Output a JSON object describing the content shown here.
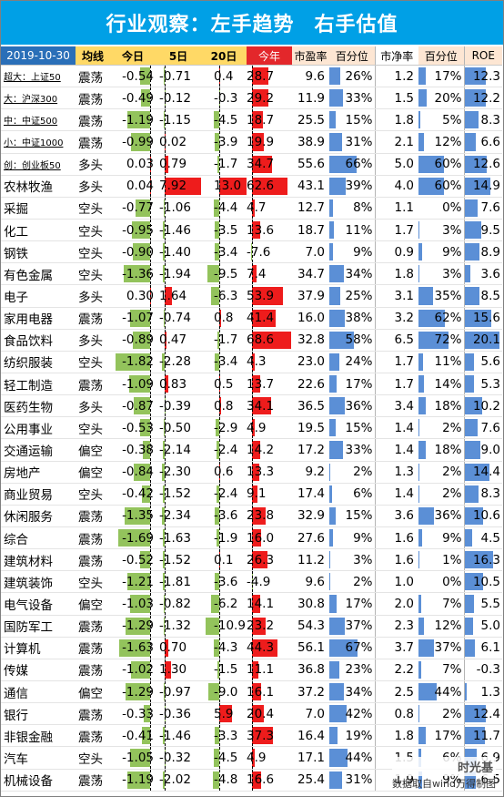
{
  "title": {
    "left": "行业观察：左手趋势",
    "right": "右手估值"
  },
  "header": {
    "date": "2019-10-30",
    "trend": "均线",
    "today": "今日",
    "d5": "5日",
    "d20": "20日",
    "ytd": "今年",
    "pe": "市盈率",
    "pe_pct": "百分位",
    "pb": "市净率",
    "pb_pct": "百分位",
    "roe": "ROE"
  },
  "watermark": {
    "logo": "时光基",
    "source": "数据取自wind万得制图"
  },
  "colors": {
    "title_bg": "#00a0e6",
    "negative": "#93c35c",
    "positive": "#ee1c1c",
    "percentile": "#5b8fd6",
    "header_peach": "#fde6d3",
    "header_yellow": "#ffd966",
    "header_blue": "#2a6fb8",
    "header_red": "#e3272b"
  },
  "chart_data": {
    "type": "table",
    "columns": [
      "名称",
      "均线",
      "今日",
      "5日",
      "20日",
      "今年",
      "市盈率",
      "百分位",
      "市净率",
      "百分位",
      "ROE"
    ],
    "rows": [
      {
        "name": "超大：上证50",
        "small": true,
        "trend": "震荡",
        "today": -0.54,
        "d5": -0.71,
        "d20": 0.4,
        "ytd": 28.7,
        "pe": 9.6,
        "pe_pct": 26,
        "pb": 1.2,
        "pb_pct": 17,
        "roe": 12.3
      },
      {
        "name": "大：沪深300",
        "small": true,
        "trend": "震荡",
        "today": -0.49,
        "d5": -0.12,
        "d20": -0.3,
        "ytd": 29.2,
        "pe": 11.9,
        "pe_pct": 33,
        "pb": 1.5,
        "pb_pct": 20,
        "roe": 12.2
      },
      {
        "name": "中：中证500",
        "small": true,
        "trend": "震荡",
        "today": -1.19,
        "d5": -1.15,
        "d20": -4.5,
        "ytd": 18.7,
        "pe": 25.5,
        "pe_pct": 15,
        "pb": 1.8,
        "pb_pct": 5,
        "roe": 8.3
      },
      {
        "name": "小：中证1000",
        "small": true,
        "trend": "震荡",
        "today": -0.99,
        "d5": 0.02,
        "d20": -3.9,
        "ytd": 19.9,
        "pe": 38.9,
        "pe_pct": 31,
        "pb": 2.1,
        "pb_pct": 12,
        "roe": 6.6
      },
      {
        "name": "创：创业板50",
        "small": true,
        "trend": "多头",
        "today": 0.03,
        "d5": 0.79,
        "d20": -1.7,
        "ytd": 34.7,
        "pe": 55.6,
        "pe_pct": 66,
        "pb": 5.0,
        "pb_pct": 60,
        "roe": 12.6
      },
      {
        "name": "农林牧渔",
        "trend": "多头",
        "today": 0.04,
        "d5": 7.92,
        "d20": 13.0,
        "ytd": 62.6,
        "pe": 43.1,
        "pe_pct": 39,
        "pb": 4.0,
        "pb_pct": 60,
        "roe": 14.9
      },
      {
        "name": "采掘",
        "trend": "空头",
        "today": -0.77,
        "d5": -1.06,
        "d20": -4.4,
        "ytd": 4.7,
        "pe": 12.7,
        "pe_pct": 8,
        "pb": 1.1,
        "pb_pct": 0,
        "roe": 7.6
      },
      {
        "name": "化工",
        "trend": "空头",
        "today": -0.95,
        "d5": -1.46,
        "d20": -3.5,
        "ytd": 13.6,
        "pe": 18.7,
        "pe_pct": 11,
        "pb": 1.7,
        "pb_pct": 3,
        "roe": 9.5
      },
      {
        "name": "钢铁",
        "trend": "空头",
        "today": -0.9,
        "d5": -1.4,
        "d20": -3.4,
        "ytd": -7.6,
        "pe": 7.0,
        "pe_pct": 9,
        "pb": 0.9,
        "pb_pct": 9,
        "roe": 8.9
      },
      {
        "name": "有色金属",
        "trend": "空头",
        "today": -1.36,
        "d5": -1.94,
        "d20": -9.5,
        "ytd": 7.4,
        "pe": 34.7,
        "pe_pct": 34,
        "pb": 1.8,
        "pb_pct": 3,
        "roe": 3.6
      },
      {
        "name": "电子",
        "trend": "多头",
        "today": 0.3,
        "d5": 1.64,
        "d20": -6.3,
        "ytd": 53.9,
        "pe": 37.9,
        "pe_pct": 25,
        "pb": 3.1,
        "pb_pct": 35,
        "roe": 8.5
      },
      {
        "name": "家用电器",
        "trend": "震荡",
        "today": -1.07,
        "d5": -0.74,
        "d20": 0.8,
        "ytd": 41.4,
        "pe": 16.0,
        "pe_pct": 38,
        "pb": 3.2,
        "pb_pct": 62,
        "roe": 15.6
      },
      {
        "name": "食品饮料",
        "trend": "多头",
        "today": -0.89,
        "d5": 0.47,
        "d20": -1.7,
        "ytd": 68.6,
        "pe": 32.8,
        "pe_pct": 58,
        "pb": 6.5,
        "pb_pct": 72,
        "roe": 20.1
      },
      {
        "name": "纺织服装",
        "trend": "空头",
        "today": -1.82,
        "d5": -2.28,
        "d20": -3.4,
        "ytd": 4.3,
        "pe": 23.0,
        "pe_pct": 24,
        "pb": 1.7,
        "pb_pct": 11,
        "roe": 5.6
      },
      {
        "name": "轻工制造",
        "trend": "震荡",
        "today": -1.09,
        "d5": 0.83,
        "d20": 0.5,
        "ytd": 13.7,
        "pe": 22.6,
        "pe_pct": 17,
        "pb": 1.7,
        "pb_pct": 14,
        "roe": 5.3
      },
      {
        "name": "医药生物",
        "trend": "多头",
        "today": -0.87,
        "d5": -0.39,
        "d20": 0.8,
        "ytd": 34.1,
        "pe": 36.5,
        "pe_pct": 36,
        "pb": 3.4,
        "pb_pct": 18,
        "roe": 10.2
      },
      {
        "name": "公用事业",
        "trend": "空头",
        "today": -0.53,
        "d5": -0.5,
        "d20": -2.9,
        "ytd": 4.9,
        "pe": 19.5,
        "pe_pct": 15,
        "pb": 1.4,
        "pb_pct": 2,
        "roe": 7.6
      },
      {
        "name": "交通运输",
        "trend": "偏空",
        "today": -0.38,
        "d5": -2.14,
        "d20": -2.4,
        "ytd": 14.2,
        "pe": 17.2,
        "pe_pct": 33,
        "pb": 1.4,
        "pb_pct": 18,
        "roe": 9.0
      },
      {
        "name": "房地产",
        "trend": "偏空",
        "today": -0.84,
        "d5": -2.3,
        "d20": 0.6,
        "ytd": 13.3,
        "pe": 9.2,
        "pe_pct": 2,
        "pb": 1.3,
        "pb_pct": 2,
        "roe": 14.4
      },
      {
        "name": "商业贸易",
        "trend": "空头",
        "today": -0.42,
        "d5": -1.52,
        "d20": -2.4,
        "ytd": 9.1,
        "pe": 17.4,
        "pe_pct": 6,
        "pb": 1.4,
        "pb_pct": 2,
        "roe": 8.3
      },
      {
        "name": "休闲服务",
        "trend": "震荡",
        "today": -1.35,
        "d5": -2.34,
        "d20": -3.6,
        "ytd": 23.8,
        "pe": 32.9,
        "pe_pct": 15,
        "pb": 3.6,
        "pb_pct": 36,
        "roe": 10.6
      },
      {
        "name": "综合",
        "trend": "震荡",
        "today": -1.69,
        "d5": -1.63,
        "d20": -1.9,
        "ytd": 16.0,
        "pe": 27.6,
        "pe_pct": 9,
        "pb": 1.6,
        "pb_pct": 9,
        "roe": 4.5
      },
      {
        "name": "建筑材料",
        "trend": "震荡",
        "today": -0.52,
        "d5": -1.52,
        "d20": 0.1,
        "ytd": 26.3,
        "pe": 11.2,
        "pe_pct": 3,
        "pb": 1.6,
        "pb_pct": 1,
        "roe": 16.3
      },
      {
        "name": "建筑装饰",
        "trend": "空头",
        "today": -1.21,
        "d5": -1.81,
        "d20": -3.6,
        "ytd": -4.9,
        "pe": 9.6,
        "pe_pct": 2,
        "pb": 1.0,
        "pb_pct": 0,
        "roe": 10.5
      },
      {
        "name": "电气设备",
        "trend": "偏空",
        "today": -1.03,
        "d5": -0.82,
        "d20": -6.2,
        "ytd": 14.1,
        "pe": 30.8,
        "pe_pct": 17,
        "pb": 2.0,
        "pb_pct": 7,
        "roe": 5.5
      },
      {
        "name": "国防军工",
        "trend": "震荡",
        "today": -1.29,
        "d5": -1.32,
        "d20": -10.9,
        "ytd": 23.2,
        "pe": 54.3,
        "pe_pct": 37,
        "pb": 2.3,
        "pb_pct": 12,
        "roe": 5.0
      },
      {
        "name": "计算机",
        "trend": "震荡",
        "today": -1.63,
        "d5": 0.7,
        "d20": -4.3,
        "ytd": 44.3,
        "pe": 56.1,
        "pe_pct": 67,
        "pb": 3.7,
        "pb_pct": 37,
        "roe": 6.1
      },
      {
        "name": "传媒",
        "trend": "震荡",
        "today": -1.02,
        "d5": 1.3,
        "d20": -1.5,
        "ytd": 11.1,
        "pe": 36.8,
        "pe_pct": 23,
        "pb": 2.2,
        "pb_pct": 7,
        "roe": -0.3
      },
      {
        "name": "通信",
        "trend": "偏空",
        "today": -1.29,
        "d5": -0.97,
        "d20": -9.0,
        "ytd": 16.1,
        "pe": 37.2,
        "pe_pct": 34,
        "pb": 2.5,
        "pb_pct": 44,
        "roe": 1.3
      },
      {
        "name": "银行",
        "trend": "震荡",
        "today": -0.33,
        "d5": -0.36,
        "d20": 5.9,
        "ytd": 20.4,
        "pe": 7.0,
        "pe_pct": 42,
        "pb": 0.8,
        "pb_pct": 2,
        "roe": 12.4
      },
      {
        "name": "非银金融",
        "trend": "震荡",
        "today": -0.41,
        "d5": -1.46,
        "d20": -3.3,
        "ytd": 37.3,
        "pe": 16.4,
        "pe_pct": 19,
        "pb": 1.8,
        "pb_pct": 17,
        "roe": 11.7
      },
      {
        "name": "汽车",
        "trend": "空头",
        "today": -1.05,
        "d5": -0.32,
        "d20": -4.5,
        "ytd": 4.9,
        "pe": 17.1,
        "pe_pct": 44,
        "pb": 1.5,
        "pb_pct": 6,
        "roe": 6.9
      },
      {
        "name": "机械设备",
        "trend": "震荡",
        "today": -1.19,
        "d5": -2.02,
        "d20": -4.8,
        "ytd": 16.6,
        "pe": 25.4,
        "pe_pct": 31,
        "pb": 1.9,
        "pb_pct": 9,
        "roe": 6.5
      }
    ]
  }
}
